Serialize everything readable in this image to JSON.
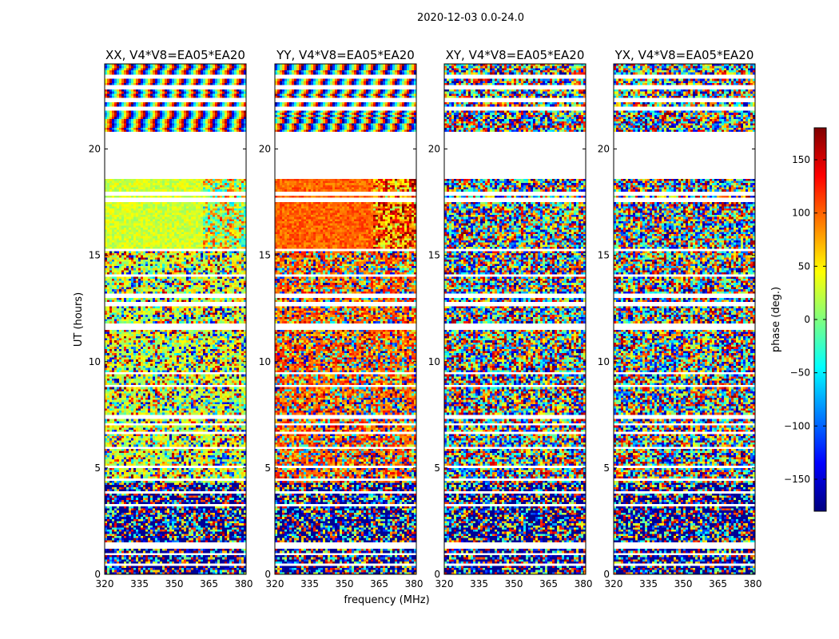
{
  "figure": {
    "suptitle": "2020-12-03 0.0-24.0",
    "xlabel": "frequency (MHz)",
    "ylabel": "UT (hours)"
  },
  "chart_data": {
    "type": "heatmap",
    "x_range": [
      320,
      381
    ],
    "y_range": [
      0,
      24
    ],
    "x_ticks": [
      320,
      335,
      350,
      365,
      380
    ],
    "y_ticks": [
      0,
      5,
      10,
      15,
      20
    ],
    "panels": [
      {
        "title": "XX, V4*V8=EA05*EA20",
        "pol": "XX"
      },
      {
        "title": "YY, V4*V8=EA05*EA20",
        "pol": "YY"
      },
      {
        "title": "XY, V4*V8=EA05*EA20",
        "pol": "XY"
      },
      {
        "title": "YX, V4*V8=EA05*EA20",
        "pol": "YX"
      }
    ],
    "colorbar": {
      "label": "phase (deg.)",
      "range": [
        -180,
        180
      ],
      "ticks": [
        150,
        100,
        50,
        0,
        -50,
        -100,
        -150
      ],
      "tick_labels": [
        "150",
        "100",
        "50",
        "0",
        "−50",
        "−100",
        "−150"
      ],
      "colormap": "jet",
      "colormap_stops": [
        "#00007f",
        "#0000ff",
        "#007fff",
        "#00ffff",
        "#7fff7f",
        "#ffff00",
        "#ff7f00",
        "#ff0000",
        "#7f0000"
      ]
    },
    "blank_ut_bands": [
      [
        18.6,
        20.8
      ],
      [
        22.2,
        22.4
      ],
      [
        21.8,
        22.0
      ],
      [
        22.8,
        23.0
      ],
      [
        23.3,
        23.45
      ],
      [
        17.5,
        17.7
      ],
      [
        17.8,
        17.95
      ],
      [
        15.2,
        15.3
      ],
      [
        14.0,
        14.1
      ],
      [
        13.0,
        13.15
      ],
      [
        12.6,
        12.75
      ],
      [
        11.5,
        11.7
      ],
      [
        11.75,
        11.85
      ],
      [
        9.4,
        9.5
      ],
      [
        8.8,
        8.9
      ],
      [
        7.3,
        7.45
      ],
      [
        7.0,
        7.1
      ],
      [
        6.6,
        6.7
      ],
      [
        5.9,
        6.0
      ],
      [
        5.0,
        5.1
      ],
      [
        4.4,
        4.55
      ],
      [
        3.8,
        3.9
      ],
      [
        3.2,
        3.3
      ],
      [
        1.2,
        1.45
      ],
      [
        0.9,
        1.0
      ],
      [
        0.45,
        0.55
      ]
    ],
    "regimes": [
      {
        "ut": [
          0.0,
          4.3
        ],
        "style": "dark_noise"
      },
      {
        "ut": [
          4.3,
          15.2
        ],
        "style": "noise"
      },
      {
        "ut": [
          15.2,
          18.6
        ],
        "style": "coherent"
      },
      {
        "ut": [
          20.8,
          24.0
        ],
        "style": "fringe"
      }
    ]
  }
}
